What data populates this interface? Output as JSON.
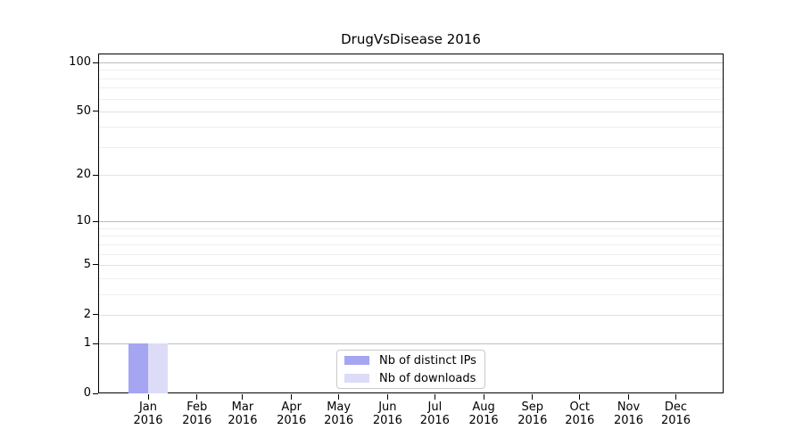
{
  "chart_data": {
    "type": "bar",
    "title": "DrugVsDisease 2016",
    "x": {
      "months": [
        "Jan",
        "Feb",
        "Mar",
        "Apr",
        "May",
        "Jun",
        "Jul",
        "Aug",
        "Sep",
        "Oct",
        "Nov",
        "Dec"
      ],
      "year": "2016"
    },
    "series": [
      {
        "name": "Nb of distinct IPs",
        "color": "#a5a5f2",
        "values": [
          1,
          0,
          0,
          0,
          0,
          0,
          0,
          0,
          0,
          0,
          0,
          0
        ]
      },
      {
        "name": "Nb of downloads",
        "color": "#dcdcf8",
        "values": [
          1,
          0,
          0,
          0,
          0,
          0,
          0,
          0,
          0,
          0,
          0,
          0
        ]
      }
    ],
    "y_axis": {
      "scale": "log1p",
      "ticks": [
        {
          "value": 0,
          "label": "0"
        },
        {
          "value": 1,
          "label": "1"
        },
        {
          "value": 2,
          "label": "2"
        },
        {
          "value": 5,
          "label": "5"
        },
        {
          "value": 10,
          "label": "10"
        },
        {
          "value": 20,
          "label": "20"
        },
        {
          "value": 50,
          "label": "50"
        },
        {
          "value": 100,
          "label": "100"
        }
      ],
      "decade_gridlines": [
        1,
        10,
        100
      ],
      "minor_gridlines": [
        3,
        4,
        6,
        7,
        8,
        9,
        30,
        40,
        60,
        70,
        80,
        90
      ],
      "ylim": [
        0,
        113
      ]
    },
    "grid": true,
    "legend_position": "bottom-center",
    "bar_value_jan": {
      "distinct_ips": 1,
      "downloads": 1
    }
  }
}
